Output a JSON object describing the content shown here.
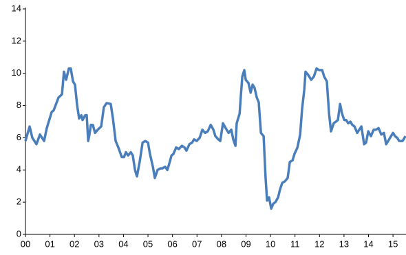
{
  "chart_data": {
    "type": "line",
    "x": [
      2000.0,
      2000.17,
      2000.28,
      2000.45,
      2000.59,
      2000.76,
      2000.87,
      2001.07,
      2001.15,
      2001.35,
      2001.49,
      2001.57,
      2001.66,
      2001.77,
      2001.85,
      2001.94,
      2002.02,
      2002.11,
      2002.19,
      2002.28,
      2002.33,
      2002.44,
      2002.5,
      2002.56,
      2002.61,
      2002.67,
      2002.75,
      2002.84,
      2002.95,
      2003.09,
      2003.2,
      2003.31,
      2003.48,
      2003.57,
      2003.68,
      2003.79,
      2003.93,
      2004.02,
      2004.1,
      2004.19,
      2004.3,
      2004.38,
      2004.47,
      2004.55,
      2004.66,
      2004.78,
      2004.89,
      2005.0,
      2005.08,
      2005.2,
      2005.28,
      2005.39,
      2005.51,
      2005.59,
      2005.7,
      2005.79,
      2005.87,
      2005.96,
      2006.04,
      2006.15,
      2006.26,
      2006.38,
      2006.49,
      2006.57,
      2006.69,
      2006.8,
      2006.88,
      2006.99,
      2007.11,
      2007.22,
      2007.33,
      2007.44,
      2007.56,
      2007.67,
      2007.75,
      2007.87,
      2007.95,
      2008.06,
      2008.17,
      2008.29,
      2008.4,
      2008.48,
      2008.57,
      2008.62,
      2008.74,
      2008.79,
      2008.85,
      2008.93,
      2008.99,
      2009.1,
      2009.19,
      2009.27,
      2009.35,
      2009.44,
      2009.52,
      2009.61,
      2009.72,
      2009.8,
      2009.86,
      2009.94,
      2010.03,
      2010.11,
      2010.2,
      2010.31,
      2010.39,
      2010.48,
      2010.59,
      2010.7,
      2010.79,
      2010.9,
      2010.98,
      2011.1,
      2011.21,
      2011.29,
      2011.38,
      2011.43,
      2011.54,
      2011.66,
      2011.77,
      2011.88,
      2011.99,
      2012.11,
      2012.19,
      2012.3,
      2012.39,
      2012.47,
      2012.58,
      2012.67,
      2012.75,
      2012.84,
      2012.92,
      2013.01,
      2013.09,
      2013.17,
      2013.26,
      2013.34,
      2013.43,
      2013.54,
      2013.62,
      2013.71,
      2013.82,
      2013.9,
      2013.99,
      2014.1,
      2014.21,
      2014.3,
      2014.41,
      2014.52,
      2014.63,
      2014.72,
      2014.8,
      2014.92,
      2015.0,
      2015.08,
      2015.17,
      2015.25,
      2015.39,
      2015.51
    ],
    "series": [
      {
        "color": "#4a7ebb",
        "values": [
          5.8,
          6.7,
          6.0,
          5.6,
          6.2,
          5.8,
          6.6,
          7.6,
          7.7,
          8.5,
          8.7,
          10.1,
          9.6,
          10.3,
          10.3,
          9.5,
          9.3,
          8.0,
          7.2,
          7.4,
          7.1,
          7.4,
          7.4,
          5.8,
          6.2,
          6.8,
          6.8,
          6.3,
          6.5,
          6.7,
          7.9,
          8.15,
          8.1,
          7.2,
          5.8,
          5.4,
          4.8,
          4.8,
          5.1,
          4.9,
          5.1,
          4.9,
          4.0,
          3.6,
          4.5,
          5.7,
          5.8,
          5.7,
          5.0,
          4.2,
          3.5,
          4.0,
          4.1,
          4.1,
          4.2,
          4.0,
          4.4,
          4.9,
          5.0,
          5.4,
          5.3,
          5.5,
          5.4,
          5.2,
          5.6,
          5.7,
          5.9,
          5.8,
          6.0,
          6.5,
          6.3,
          6.4,
          6.8,
          6.5,
          6.1,
          5.9,
          5.8,
          6.9,
          6.6,
          6.3,
          6.5,
          5.9,
          5.5,
          6.9,
          7.5,
          8.6,
          9.8,
          10.2,
          9.6,
          9.4,
          8.8,
          9.3,
          9.1,
          8.5,
          8.2,
          6.3,
          6.1,
          3.5,
          2.1,
          2.3,
          1.6,
          1.9,
          2.0,
          2.3,
          2.8,
          3.2,
          3.3,
          3.5,
          4.5,
          4.6,
          5.0,
          5.4,
          6.2,
          7.8,
          9.0,
          10.1,
          9.9,
          9.6,
          9.8,
          10.3,
          10.2,
          10.2,
          9.8,
          9.5,
          7.5,
          6.4,
          6.9,
          7.0,
          7.1,
          8.1,
          7.5,
          7.1,
          7.1,
          6.9,
          7.0,
          6.8,
          6.7,
          6.3,
          6.5,
          6.7,
          5.6,
          5.7,
          6.4,
          6.1,
          6.5,
          6.5,
          6.6,
          6.2,
          6.3,
          5.6,
          5.8,
          6.1,
          6.3,
          6.1,
          6.0,
          5.8,
          5.8,
          6.1
        ]
      }
    ],
    "xlim": [
      2000,
      2015.53
    ],
    "xticks": [
      {
        "value": 2000,
        "label": "00"
      },
      {
        "value": 2001,
        "label": "01"
      },
      {
        "value": 2002,
        "label": "02"
      },
      {
        "value": 2003,
        "label": "03"
      },
      {
        "value": 2004,
        "label": "04"
      },
      {
        "value": 2005,
        "label": "05"
      },
      {
        "value": 2006,
        "label": "06"
      },
      {
        "value": 2007,
        "label": "07"
      },
      {
        "value": 2008,
        "label": "08"
      },
      {
        "value": 2009,
        "label": "09"
      },
      {
        "value": 2010,
        "label": "10"
      },
      {
        "value": 2011,
        "label": "11"
      },
      {
        "value": 2012,
        "label": "12"
      },
      {
        "value": 2013,
        "label": "13"
      },
      {
        "value": 2014,
        "label": "14"
      },
      {
        "value": 2015,
        "label": "15"
      }
    ],
    "ylim": [
      0,
      14
    ],
    "yticks": [
      0,
      2,
      4,
      6,
      8,
      10,
      12,
      14
    ],
    "grid": false
  }
}
